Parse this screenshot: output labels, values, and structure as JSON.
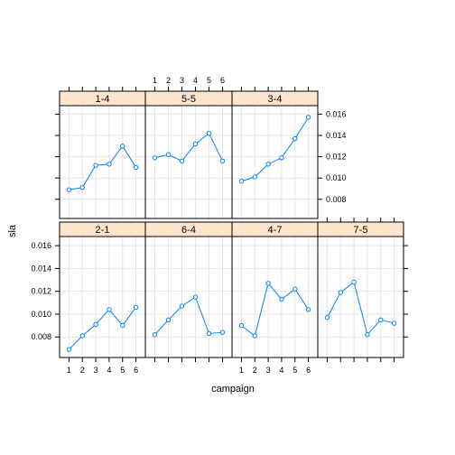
{
  "chart_data": {
    "type": "line",
    "layout": "lattice 4x2 panels, top-left empty",
    "xlabel": "campaign",
    "ylabel": "sla",
    "x_ticks": [
      1,
      2,
      3,
      4,
      5,
      6
    ],
    "y_ticks": [
      0.008,
      0.01,
      0.012,
      0.014,
      0.016
    ],
    "y_tick_labels": [
      "0.008",
      "0.010",
      "0.012",
      "0.014",
      "0.016"
    ],
    "xlim": [
      0.5,
      6.5
    ],
    "ylim": [
      0.0062,
      0.0168
    ],
    "grid": true,
    "series_color": "#0080ff",
    "strip_color": "#ffe5cc",
    "panels": [
      {
        "label": "1-4",
        "row": 0,
        "col": 0,
        "x": [
          1,
          2,
          3,
          4,
          5,
          6
        ],
        "values": [
          0.0089,
          0.0091,
          0.0112,
          0.0113,
          0.013,
          0.011
        ]
      },
      {
        "label": "5-5",
        "row": 0,
        "col": 1,
        "x": [
          1,
          2,
          3,
          4,
          5,
          6
        ],
        "values": [
          0.0119,
          0.0122,
          0.0116,
          0.0132,
          0.0142,
          0.0116
        ]
      },
      {
        "label": "3-4",
        "row": 0,
        "col": 2,
        "x": [
          1,
          2,
          3,
          4,
          5,
          6
        ],
        "values": [
          0.0097,
          0.0101,
          0.0113,
          0.0119,
          0.0137,
          0.0157
        ]
      },
      {
        "label": "2-1",
        "row": 1,
        "col": 0,
        "x": [
          1,
          2,
          3,
          4,
          5,
          6
        ],
        "values": [
          0.0069,
          0.0081,
          0.0091,
          0.0104,
          0.009,
          0.0106
        ]
      },
      {
        "label": "6-4",
        "row": 1,
        "col": 1,
        "x": [
          1,
          2,
          3,
          4,
          5,
          6
        ],
        "values": [
          0.0082,
          0.0095,
          0.0107,
          0.0115,
          0.0083,
          0.0084
        ]
      },
      {
        "label": "4-7",
        "row": 1,
        "col": 2,
        "x": [
          1,
          2,
          3,
          4,
          5,
          6
        ],
        "values": [
          0.009,
          0.0081,
          0.0127,
          0.0113,
          0.0122,
          0.0104
        ]
      },
      {
        "label": "7-5",
        "row": 1,
        "col": 3,
        "x": [
          1,
          2,
          3,
          4,
          5,
          6
        ],
        "values": [
          0.0097,
          0.0119,
          0.0128,
          0.0082,
          0.0095,
          0.0092
        ]
      }
    ]
  }
}
